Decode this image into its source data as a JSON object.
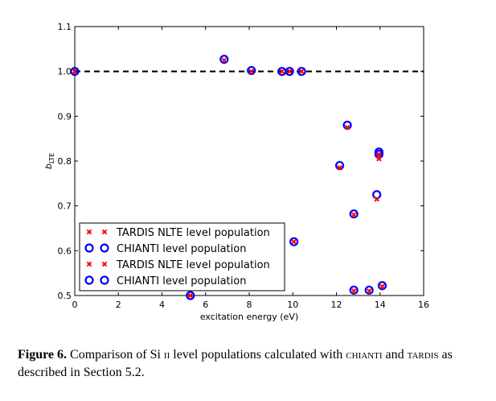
{
  "chart_data": {
    "type": "scatter",
    "title": "",
    "xlabel": "excitation energy (eV)",
    "ylabel": "b_LTE",
    "ylabel_main": "b",
    "ylabel_sub": "LTE",
    "xlim": [
      0,
      16
    ],
    "ylim": [
      0.5,
      1.1
    ],
    "x_ticks": [
      "0",
      "2",
      "4",
      "6",
      "8",
      "10",
      "12",
      "14",
      "16"
    ],
    "y_ticks": [
      "0.5",
      "0.6",
      "0.7",
      "0.8",
      "0.9",
      "1.0",
      "1.1"
    ],
    "reference_line": {
      "y": 1.0,
      "style": "dashed"
    },
    "grid": false,
    "legend_placement": "bottom-left",
    "series": [
      {
        "name": "TARDIS NLTE level population",
        "marker": "x",
        "color": "#ff0000",
        "points": [
          [
            0.0,
            1.0
          ],
          [
            5.3,
            0.5
          ],
          [
            6.85,
            1.025
          ],
          [
            8.1,
            1.0
          ],
          [
            9.5,
            1.0
          ],
          [
            9.85,
            1.0
          ],
          [
            10.4,
            1.0
          ],
          [
            10.05,
            0.62
          ],
          [
            12.15,
            0.785
          ],
          [
            12.5,
            0.875
          ],
          [
            12.8,
            0.68
          ],
          [
            12.8,
            0.51
          ],
          [
            13.5,
            0.51
          ],
          [
            13.85,
            0.715
          ],
          [
            13.95,
            0.805
          ],
          [
            13.95,
            0.815
          ],
          [
            14.1,
            0.52
          ]
        ]
      },
      {
        "name": "CHIANTI level population",
        "marker": "o",
        "color": "#0000ff",
        "points": [
          [
            0.0,
            1.0
          ],
          [
            5.3,
            0.5
          ],
          [
            6.85,
            1.027
          ],
          [
            8.1,
            1.002
          ],
          [
            9.5,
            1.0
          ],
          [
            9.85,
            1.0
          ],
          [
            10.4,
            1.0
          ],
          [
            10.05,
            0.62
          ],
          [
            12.15,
            0.79
          ],
          [
            12.5,
            0.88
          ],
          [
            12.8,
            0.682
          ],
          [
            12.8,
            0.512
          ],
          [
            13.5,
            0.512
          ],
          [
            13.85,
            0.725
          ],
          [
            13.95,
            0.815
          ],
          [
            13.95,
            0.82
          ],
          [
            14.1,
            0.522
          ]
        ]
      }
    ],
    "legend": [
      {
        "label": "TARDIS NLTE level population",
        "marker": "x",
        "color": "#ff0000"
      },
      {
        "label": "CHIANTI level population",
        "marker": "o",
        "color": "#0000ff"
      },
      {
        "label": "TARDIS NLTE level population",
        "marker": "x",
        "color": "#ff0000"
      },
      {
        "label": "CHIANTI level population",
        "marker": "o",
        "color": "#0000ff"
      }
    ]
  },
  "caption": {
    "label": "Figure 6.",
    "text_1": " Comparison of Si ",
    "ion": "ii",
    "text_2": " level populations calculated with ",
    "code_1": "chianti",
    "text_3": " and ",
    "code_2": "tardis",
    "text_4": " as described in Section 5.2."
  }
}
